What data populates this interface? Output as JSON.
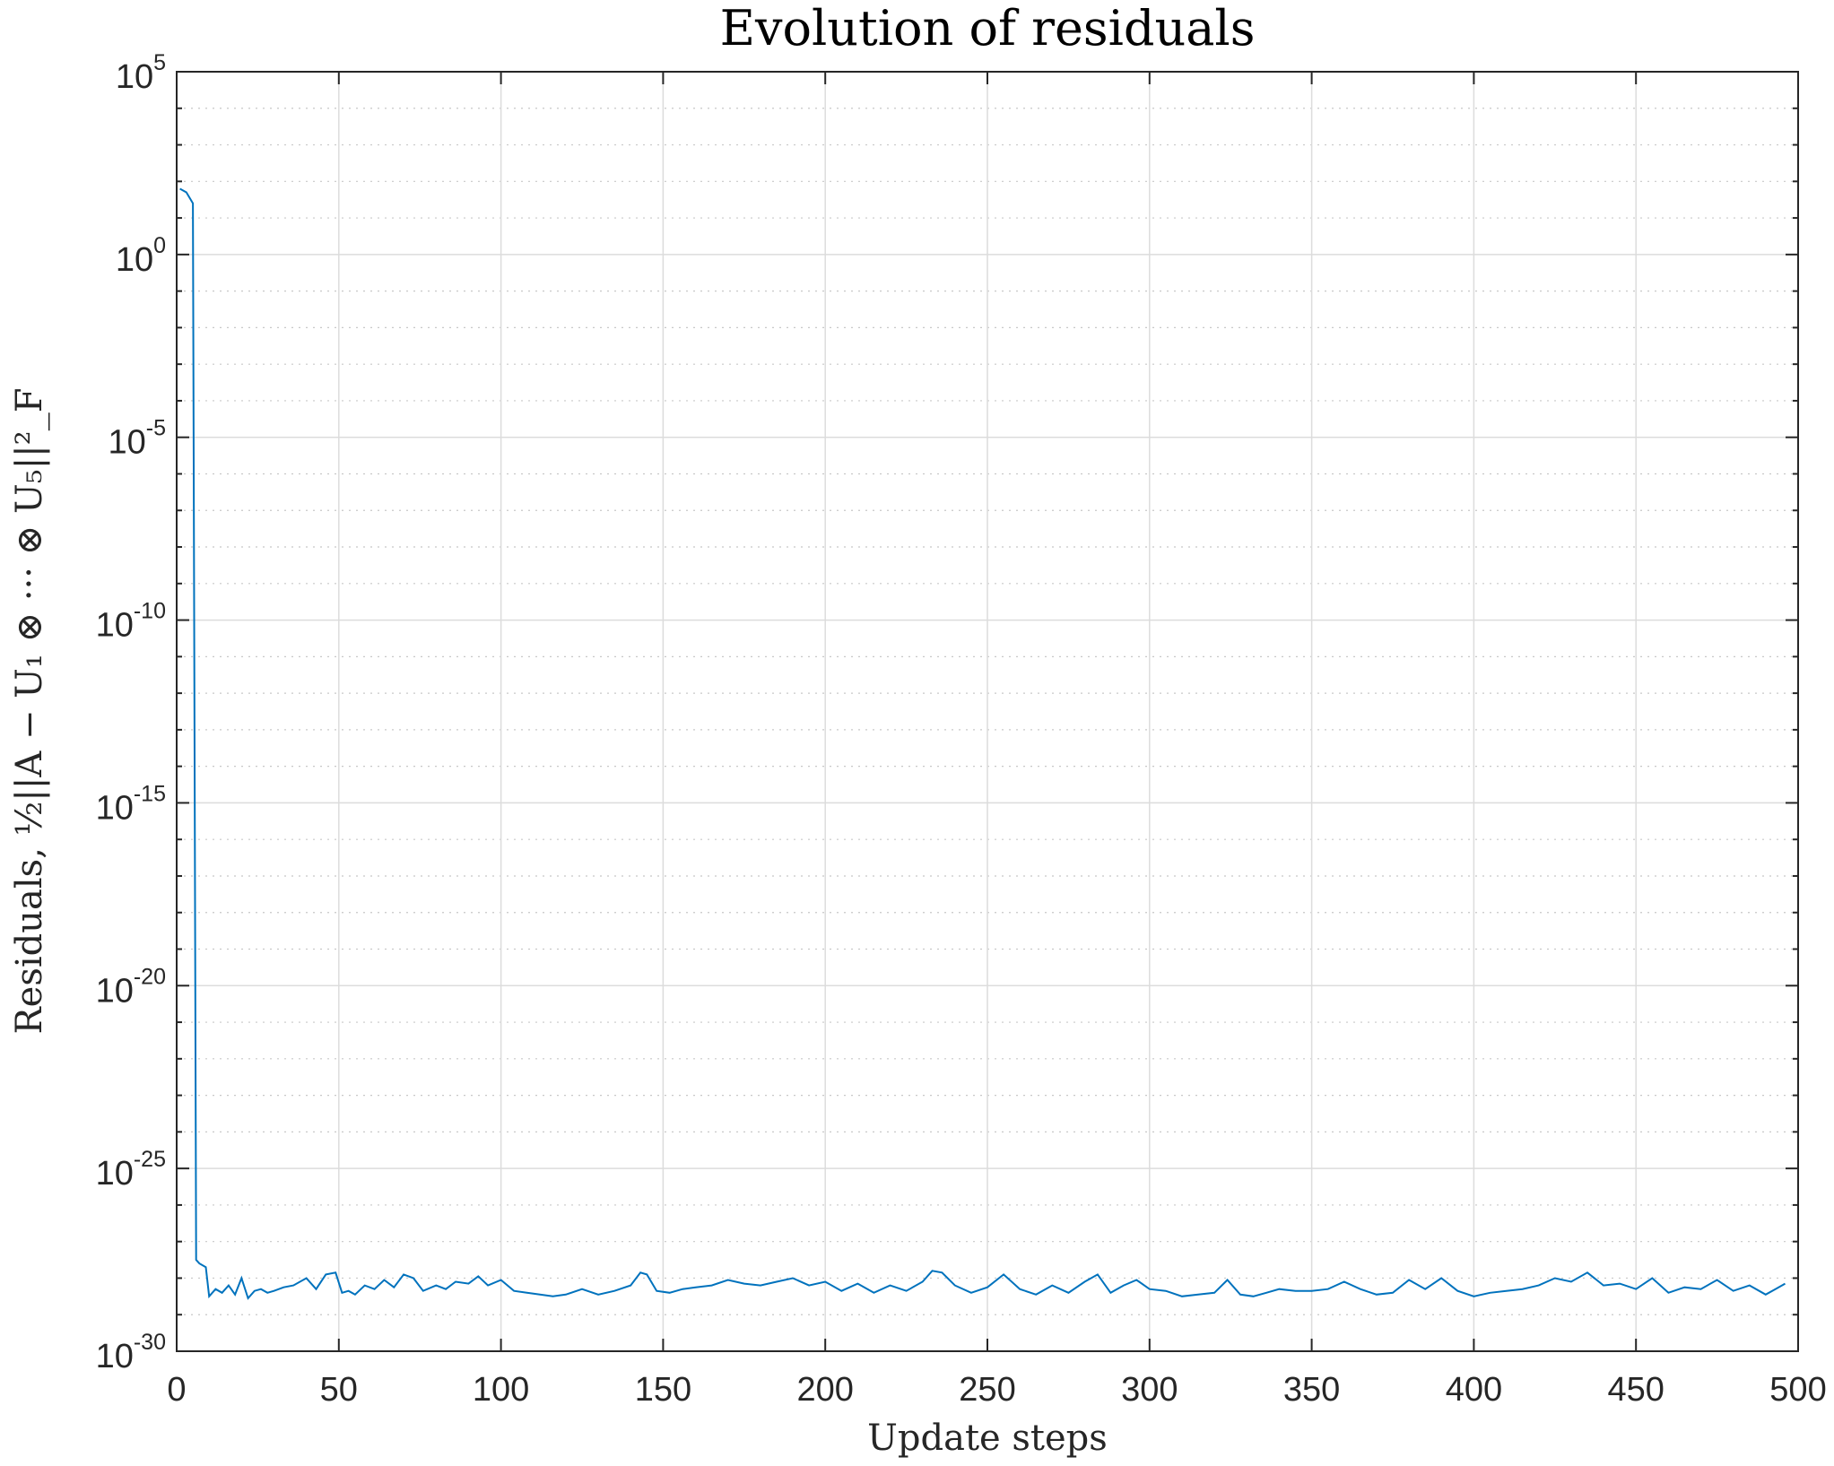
{
  "chart_data": {
    "type": "line",
    "title": "Evolution of residuals",
    "xlabel": "Update steps",
    "ylabel": "Residuals, ½||A − U₁ ⊗ ··· ⊗ U₅||²_F",
    "xlim": [
      0,
      500
    ],
    "ylim_exponent": [
      -30,
      5
    ],
    "yscale": "log",
    "grid": true,
    "x_ticks": [
      "0",
      "50",
      "100",
      "150",
      "200",
      "250",
      "300",
      "350",
      "400",
      "450",
      "500"
    ],
    "y_ticks": [
      {
        "base": "10",
        "exp": "5"
      },
      {
        "base": "10",
        "exp": "0"
      },
      {
        "base": "10",
        "exp": "-5"
      },
      {
        "base": "10",
        "exp": "-10"
      },
      {
        "base": "10",
        "exp": "-15"
      },
      {
        "base": "10",
        "exp": "-20"
      },
      {
        "base": "10",
        "exp": "-25"
      },
      {
        "base": "10",
        "exp": "-30"
      }
    ],
    "series": [
      {
        "color": "#0072bd",
        "x": [
          1,
          3,
          5,
          6,
          7,
          9,
          10,
          12,
          14,
          16,
          18,
          20,
          22,
          24,
          26,
          28,
          30,
          33,
          36,
          40,
          43,
          46,
          49,
          51,
          53,
          55,
          58,
          61,
          64,
          67,
          70,
          73,
          76,
          80,
          83,
          86,
          90,
          93,
          96,
          100,
          104,
          108,
          112,
          116,
          120,
          125,
          130,
          135,
          140,
          143,
          145,
          148,
          152,
          156,
          160,
          165,
          170,
          175,
          180,
          185,
          190,
          195,
          200,
          205,
          210,
          215,
          220,
          225,
          230,
          233,
          236,
          240,
          245,
          250,
          255,
          260,
          265,
          270,
          275,
          280,
          284,
          288,
          292,
          296,
          300,
          305,
          310,
          315,
          320,
          324,
          328,
          332,
          336,
          340,
          345,
          350,
          355,
          360,
          365,
          370,
          375,
          380,
          385,
          390,
          395,
          400,
          405,
          410,
          415,
          420,
          425,
          430,
          435,
          440,
          445,
          450,
          455,
          460,
          465,
          470,
          475,
          480,
          485,
          490,
          493,
          496
        ],
        "y_exponent": [
          1.8,
          1.7,
          1.4,
          -27.5,
          -27.6,
          -27.7,
          -28.5,
          -28.3,
          -28.4,
          -28.2,
          -28.45,
          -28.0,
          -28.55,
          -28.35,
          -28.3,
          -28.4,
          -28.35,
          -28.25,
          -28.2,
          -28.0,
          -28.3,
          -27.9,
          -27.85,
          -28.4,
          -28.35,
          -28.45,
          -28.2,
          -28.3,
          -28.05,
          -28.25,
          -27.9,
          -28.0,
          -28.35,
          -28.2,
          -28.3,
          -28.1,
          -28.15,
          -27.95,
          -28.2,
          -28.05,
          -28.35,
          -28.4,
          -28.45,
          -28.5,
          -28.45,
          -28.3,
          -28.45,
          -28.35,
          -28.2,
          -27.85,
          -27.9,
          -28.35,
          -28.4,
          -28.3,
          -28.25,
          -28.2,
          -28.05,
          -28.15,
          -28.2,
          -28.1,
          -28.0,
          -28.2,
          -28.1,
          -28.35,
          -28.15,
          -28.4,
          -28.2,
          -28.35,
          -28.1,
          -27.8,
          -27.85,
          -28.2,
          -28.4,
          -28.25,
          -27.9,
          -28.3,
          -28.45,
          -28.2,
          -28.4,
          -28.1,
          -27.9,
          -28.4,
          -28.2,
          -28.05,
          -28.3,
          -28.35,
          -28.5,
          -28.45,
          -28.4,
          -28.05,
          -28.45,
          -28.5,
          -28.4,
          -28.3,
          -28.35,
          -28.35,
          -28.3,
          -28.1,
          -28.3,
          -28.45,
          -28.4,
          -28.05,
          -28.3,
          -28.0,
          -28.35,
          -28.5,
          -28.4,
          -28.35,
          -28.3,
          -28.2,
          -28.0,
          -28.1,
          -27.85,
          -28.2,
          -28.15,
          -28.3,
          -28.0,
          -28.4,
          -28.25,
          -28.3,
          -28.05,
          -28.35,
          -28.2,
          -28.45,
          -28.3,
          -28.15
        ]
      }
    ]
  }
}
